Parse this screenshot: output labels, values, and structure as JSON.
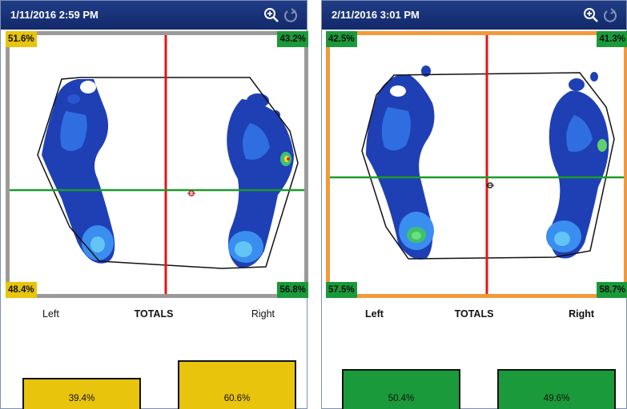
{
  "colors": {
    "titlebar": "#1a347a",
    "left_panel_frame": "#9a9a9a",
    "right_panel_frame": "#f29a3a",
    "yellow": "#e8c40c",
    "green": "#1a9a3a",
    "crosshair_vertical": "#e51414",
    "crosshair_horizontal": "#1b9b2b"
  },
  "panels": [
    {
      "title": "1/11/2016 2:59 PM",
      "icons": [
        "zoom-in-icon",
        "reset-icon"
      ],
      "quadrants": {
        "top_left": {
          "label": "51.6%",
          "color": "yellow"
        },
        "top_right": {
          "label": "43.2%",
          "color": "green"
        },
        "bottom_left": {
          "label": "48.4%",
          "color": "yellow"
        },
        "bottom_right": {
          "label": "56.8%",
          "color": "green"
        }
      },
      "totals": {
        "left": "Left",
        "title": "TOTALS",
        "right": "Right"
      },
      "bars": [
        {
          "label": "39.4%",
          "value": 39.4,
          "color": "yellow"
        },
        {
          "label": "60.6%",
          "value": 60.6,
          "color": "yellow"
        }
      ]
    },
    {
      "title": "2/11/2016 3:01 PM",
      "icons": [
        "zoom-in-icon",
        "reset-icon"
      ],
      "quadrants": {
        "top_left": {
          "label": "42.5%",
          "color": "green"
        },
        "top_right": {
          "label": "41.3%",
          "color": "green"
        },
        "bottom_left": {
          "label": "57.5%",
          "color": "green"
        },
        "bottom_right": {
          "label": "58.7%",
          "color": "green"
        }
      },
      "totals": {
        "left": "Left",
        "title": "TOTALS",
        "right": "Right"
      },
      "bars": [
        {
          "label": "50.4%",
          "value": 50.4,
          "color": "green"
        },
        {
          "label": "49.6%",
          "value": 49.6,
          "color": "green"
        }
      ]
    }
  ]
}
